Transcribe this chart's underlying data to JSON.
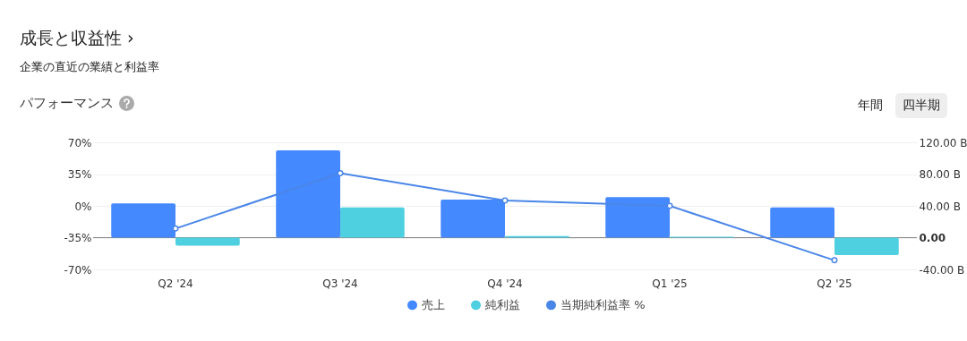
{
  "chart_data": {
    "type": "bar",
    "title": "成長と収益性 ›",
    "subtitle": "企業の直近の業績と利益率",
    "annotations": [
      "パフォーマンス",
      "年間",
      "四半期"
    ],
    "categories": [
      "Q2 '24",
      "Q3 '24",
      "Q4 '24",
      "Q1 '25",
      "Q2 '25"
    ],
    "series": [
      {
        "name": "売上",
        "color": "#4589ff",
        "values": [
          43,
          110,
          48,
          51,
          38
        ],
        "axis": "y2"
      },
      {
        "name": "純利益",
        "color": "#4fd0e0",
        "values": [
          -10,
          38,
          2,
          1,
          -22
        ],
        "axis": "y2"
      },
      {
        "name": "当期純利益率 %",
        "color": "#4a86e8",
        "type": "line",
        "values": [
          -25,
          36,
          6,
          0,
          -60
        ]
      }
    ],
    "ylim": [
      -70,
      70
    ],
    "yticks": [
      {
        "value": -70,
        "label": "-70%"
      },
      {
        "value": -35,
        "label": "-35%"
      },
      {
        "value": 0,
        "label": "0%"
      },
      {
        "value": 35,
        "label": "35%"
      },
      {
        "value": 70,
        "label": "70%"
      }
    ],
    "y2lim": [
      -40,
      120
    ],
    "y2ticks": [
      {
        "value": -40,
        "label": "-40.00 B"
      },
      {
        "value": 0,
        "label": "0.00"
      },
      {
        "value": 40,
        "label": "40.00 B"
      },
      {
        "value": 80,
        "label": "80.00 B"
      },
      {
        "value": 120,
        "label": "120.00 B"
      }
    ],
    "ref_lines": [
      {
        "axis": "y2",
        "value": 0,
        "color": "#888888"
      }
    ],
    "grid": "y",
    "legend": "bottom",
    "marker": "circle"
  }
}
